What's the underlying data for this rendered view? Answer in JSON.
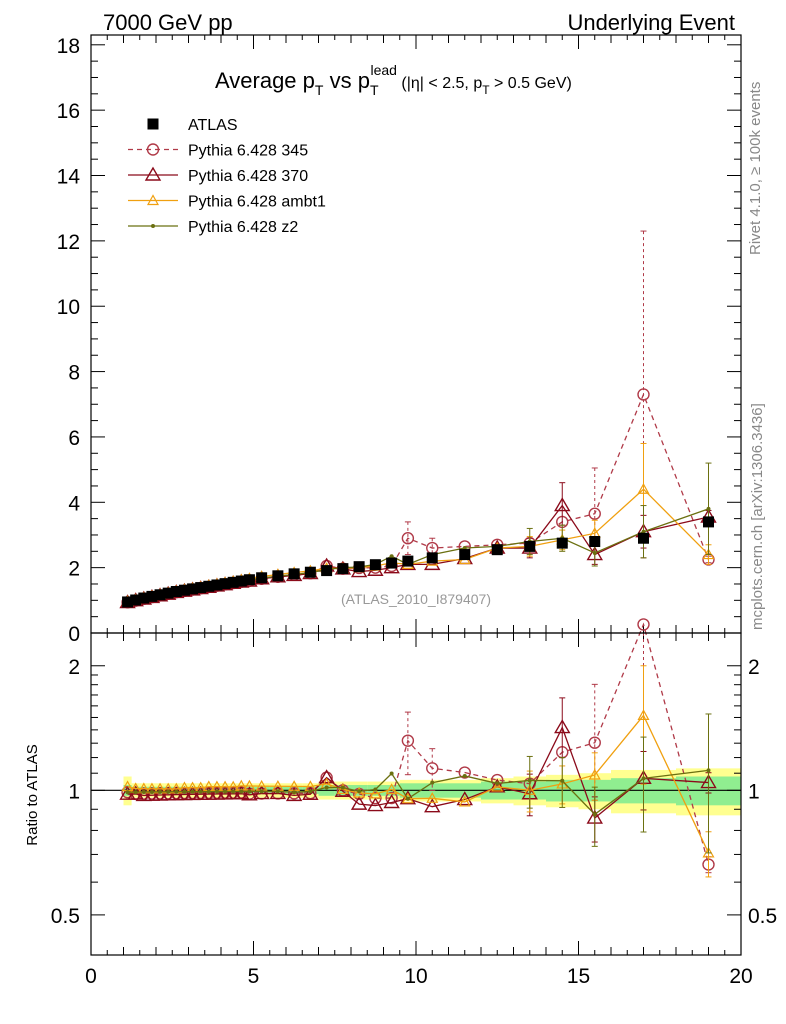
{
  "header": {
    "left": "7000 GeV pp",
    "right": "Underlying Event"
  },
  "title": {
    "main": "Average p",
    "main_sub": "T",
    "vs": " vs p",
    "vs_sub": "T",
    "vs_sup": "lead",
    "cuts": " (|η| < 2.5, p",
    "cuts_sub": "T",
    "cuts_tail": " > 0.5 GeV)"
  },
  "side_labels": {
    "rivet": "Rivet 4.1.0, ≥ 100k events",
    "mcplots": "mcplots.cern.ch [arXiv:1306.3436]"
  },
  "analysis_tag": "(ATLAS_2010_I879407)",
  "ratio_ylabel": "Ratio to ATLAS",
  "colors": {
    "atlas": "#000000",
    "p345": "#b03a48",
    "p370": "#8b0a1a",
    "ambt1": "#f0a010",
    "z2": "#6b7010",
    "band_inner": "#90ee90",
    "band_outer": "#ffff90"
  },
  "chart_data": {
    "type": "line",
    "x": [
      1.125,
      1.375,
      1.625,
      1.875,
      2.125,
      2.375,
      2.625,
      2.875,
      3.125,
      3.375,
      3.625,
      3.875,
      4.125,
      4.375,
      4.625,
      4.875,
      5.25,
      5.75,
      6.25,
      6.75,
      7.25,
      7.75,
      8.25,
      8.75,
      9.25,
      9.75,
      10.5,
      11.5,
      12.5,
      13.5,
      14.5,
      15.5,
      17.0,
      19.0
    ],
    "xlim": [
      0,
      20
    ],
    "xticks": [
      0,
      5,
      10,
      15,
      20
    ],
    "main": {
      "ylim": [
        0,
        18.3
      ],
      "yticks": [
        0,
        2,
        4,
        6,
        8,
        10,
        12,
        14,
        16,
        18
      ]
    },
    "ratio": {
      "ylim": [
        0.4,
        2.4
      ],
      "yticks": [
        0.5,
        1,
        2
      ],
      "scale": "log"
    },
    "series": [
      {
        "name": "ATLAS",
        "key": "atlas",
        "style": "data",
        "y": [
          0.95,
          1.01,
          1.07,
          1.12,
          1.17,
          1.22,
          1.27,
          1.31,
          1.35,
          1.39,
          1.43,
          1.47,
          1.51,
          1.55,
          1.59,
          1.63,
          1.69,
          1.75,
          1.81,
          1.86,
          1.91,
          1.97,
          2.03,
          2.09,
          2.14,
          2.2,
          2.3,
          2.4,
          2.55,
          2.65,
          2.75,
          2.8,
          2.9,
          3.4
        ]
      },
      {
        "name": "Pythia 6.428 345",
        "key": "p345",
        "style": "dashed-circle",
        "y": [
          0.94,
          0.99,
          1.05,
          1.1,
          1.15,
          1.2,
          1.25,
          1.29,
          1.33,
          1.37,
          1.41,
          1.45,
          1.49,
          1.53,
          1.57,
          1.6,
          1.66,
          1.72,
          1.78,
          1.83,
          2.05,
          1.97,
          1.99,
          2.0,
          2.05,
          2.9,
          2.6,
          2.65,
          2.7,
          2.75,
          3.4,
          3.65,
          7.3,
          2.25
        ]
      },
      {
        "name": "Pythia 6.428 370",
        "key": "p370",
        "style": "solid-triangle",
        "y": [
          0.93,
          0.99,
          1.04,
          1.09,
          1.14,
          1.19,
          1.24,
          1.28,
          1.32,
          1.36,
          1.4,
          1.44,
          1.48,
          1.52,
          1.56,
          1.59,
          1.66,
          1.72,
          1.76,
          1.82,
          2.05,
          1.96,
          1.88,
          1.92,
          2.0,
          2.1,
          2.1,
          2.28,
          2.6,
          2.6,
          3.9,
          2.4,
          3.1,
          3.55
        ]
      },
      {
        "name": "Pythia 6.428 ambt1",
        "key": "ambt1",
        "style": "solid-triangle",
        "y": [
          0.97,
          1.02,
          1.08,
          1.13,
          1.18,
          1.23,
          1.28,
          1.33,
          1.37,
          1.41,
          1.46,
          1.5,
          1.54,
          1.58,
          1.63,
          1.67,
          1.73,
          1.79,
          1.85,
          1.9,
          1.98,
          1.98,
          2.0,
          2.05,
          2.15,
          2.1,
          2.2,
          2.25,
          2.6,
          2.65,
          2.85,
          3.05,
          4.4,
          2.4
        ]
      },
      {
        "name": "Pythia 6.428 z2",
        "key": "z2",
        "style": "solid-dot",
        "y": [
          0.94,
          1.0,
          1.06,
          1.11,
          1.16,
          1.21,
          1.26,
          1.3,
          1.34,
          1.38,
          1.42,
          1.46,
          1.5,
          1.54,
          1.58,
          1.62,
          1.68,
          1.74,
          1.79,
          1.85,
          1.94,
          2.0,
          2.02,
          2.1,
          2.35,
          2.1,
          2.4,
          2.6,
          2.65,
          2.8,
          2.9,
          2.45,
          3.1,
          3.8
        ]
      }
    ],
    "errors": {
      "p345": {
        "x": [
          9.75,
          10.5,
          15.5,
          17.0,
          19.0
        ],
        "up": [
          0.5,
          0.3,
          1.4,
          5.0,
          0.1
        ],
        "down": [
          0.5,
          0.3,
          1.0,
          5.0,
          0.1
        ]
      },
      "p370": {
        "x": [
          13.5,
          14.5,
          15.5,
          17.0,
          19.0
        ],
        "up": [
          0.3,
          0.7,
          0.3,
          0.5,
          0.2
        ],
        "down": [
          0.3,
          0.6,
          0.3,
          0.5,
          0.2
        ]
      },
      "ambt1": {
        "x": [
          13.5,
          14.5,
          15.5,
          17.0,
          19.0
        ],
        "up": [
          0.3,
          0.3,
          0.4,
          1.4,
          0.3
        ],
        "down": [
          0.3,
          0.3,
          0.4,
          1.4,
          0.3
        ]
      },
      "z2": {
        "x": [
          13.5,
          14.5,
          15.5,
          17.0,
          19.0
        ],
        "up": [
          0.4,
          0.4,
          0.4,
          0.8,
          1.4
        ],
        "down": [
          0.4,
          0.4,
          0.4,
          0.8,
          1.4
        ]
      }
    },
    "ratio_band": {
      "x_edges": [
        1.0,
        1.25,
        1.5,
        1.75,
        2.0,
        2.25,
        2.5,
        2.75,
        3.0,
        3.25,
        3.5,
        3.75,
        4.0,
        4.25,
        4.5,
        4.75,
        5.0,
        5.5,
        6.0,
        6.5,
        7.0,
        7.5,
        8.0,
        8.5,
        9.0,
        9.5,
        10.0,
        11.0,
        12.0,
        13.0,
        14.0,
        15.0,
        16.0,
        18.0,
        20.0
      ],
      "inner": [
        0.03,
        0.02,
        0.02,
        0.02,
        0.02,
        0.02,
        0.02,
        0.02,
        0.02,
        0.02,
        0.02,
        0.02,
        0.02,
        0.02,
        0.02,
        0.02,
        0.02,
        0.02,
        0.02,
        0.02,
        0.03,
        0.03,
        0.03,
        0.03,
        0.03,
        0.04,
        0.04,
        0.04,
        0.05,
        0.05,
        0.06,
        0.06,
        0.07,
        0.08
      ],
      "outer": [
        0.08,
        0.04,
        0.04,
        0.04,
        0.04,
        0.04,
        0.04,
        0.04,
        0.04,
        0.04,
        0.04,
        0.04,
        0.04,
        0.04,
        0.04,
        0.04,
        0.04,
        0.04,
        0.04,
        0.04,
        0.05,
        0.05,
        0.05,
        0.05,
        0.05,
        0.06,
        0.06,
        0.06,
        0.07,
        0.08,
        0.09,
        0.1,
        0.12,
        0.13
      ]
    }
  }
}
